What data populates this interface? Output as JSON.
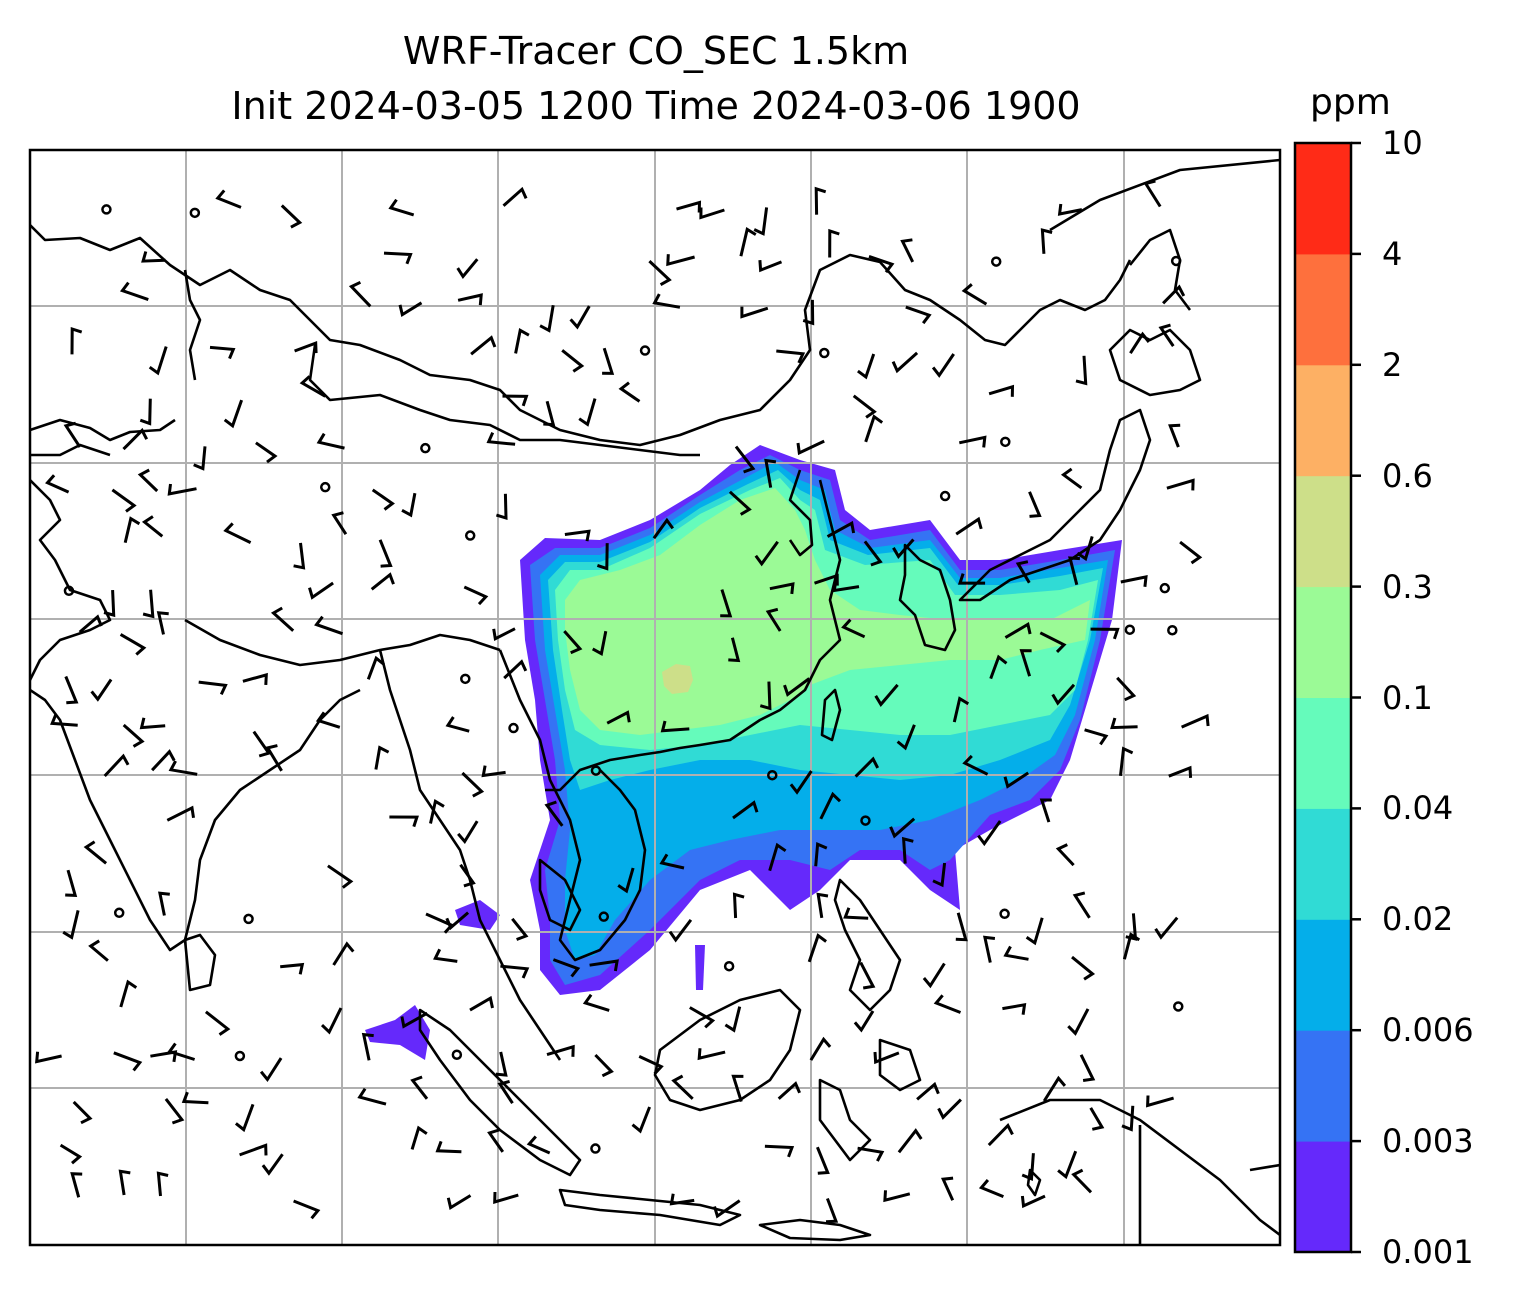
{
  "title": {
    "line1": "WRF-Tracer CO_SEC 1.5km",
    "line2": "Init 2024-03-05 1200 Time 2024-03-06 1900"
  },
  "colorbar": {
    "unit": "ppm",
    "levels": [
      "0.001",
      "0.003",
      "0.006",
      "0.02",
      "0.04",
      "0.1",
      "0.3",
      "0.6",
      "2",
      "4",
      "10"
    ],
    "colors": [
      "#6529fb",
      "#3573f4",
      "#04aeea",
      "#30dbd5",
      "#65fbbb",
      "#9bfa96",
      "#cddf89",
      "#fdb064",
      "#fe703d",
      "#ff2b17"
    ]
  },
  "map": {
    "field": "CO_SEC tracer concentration",
    "wind_barbs": "present",
    "grid": true
  }
}
